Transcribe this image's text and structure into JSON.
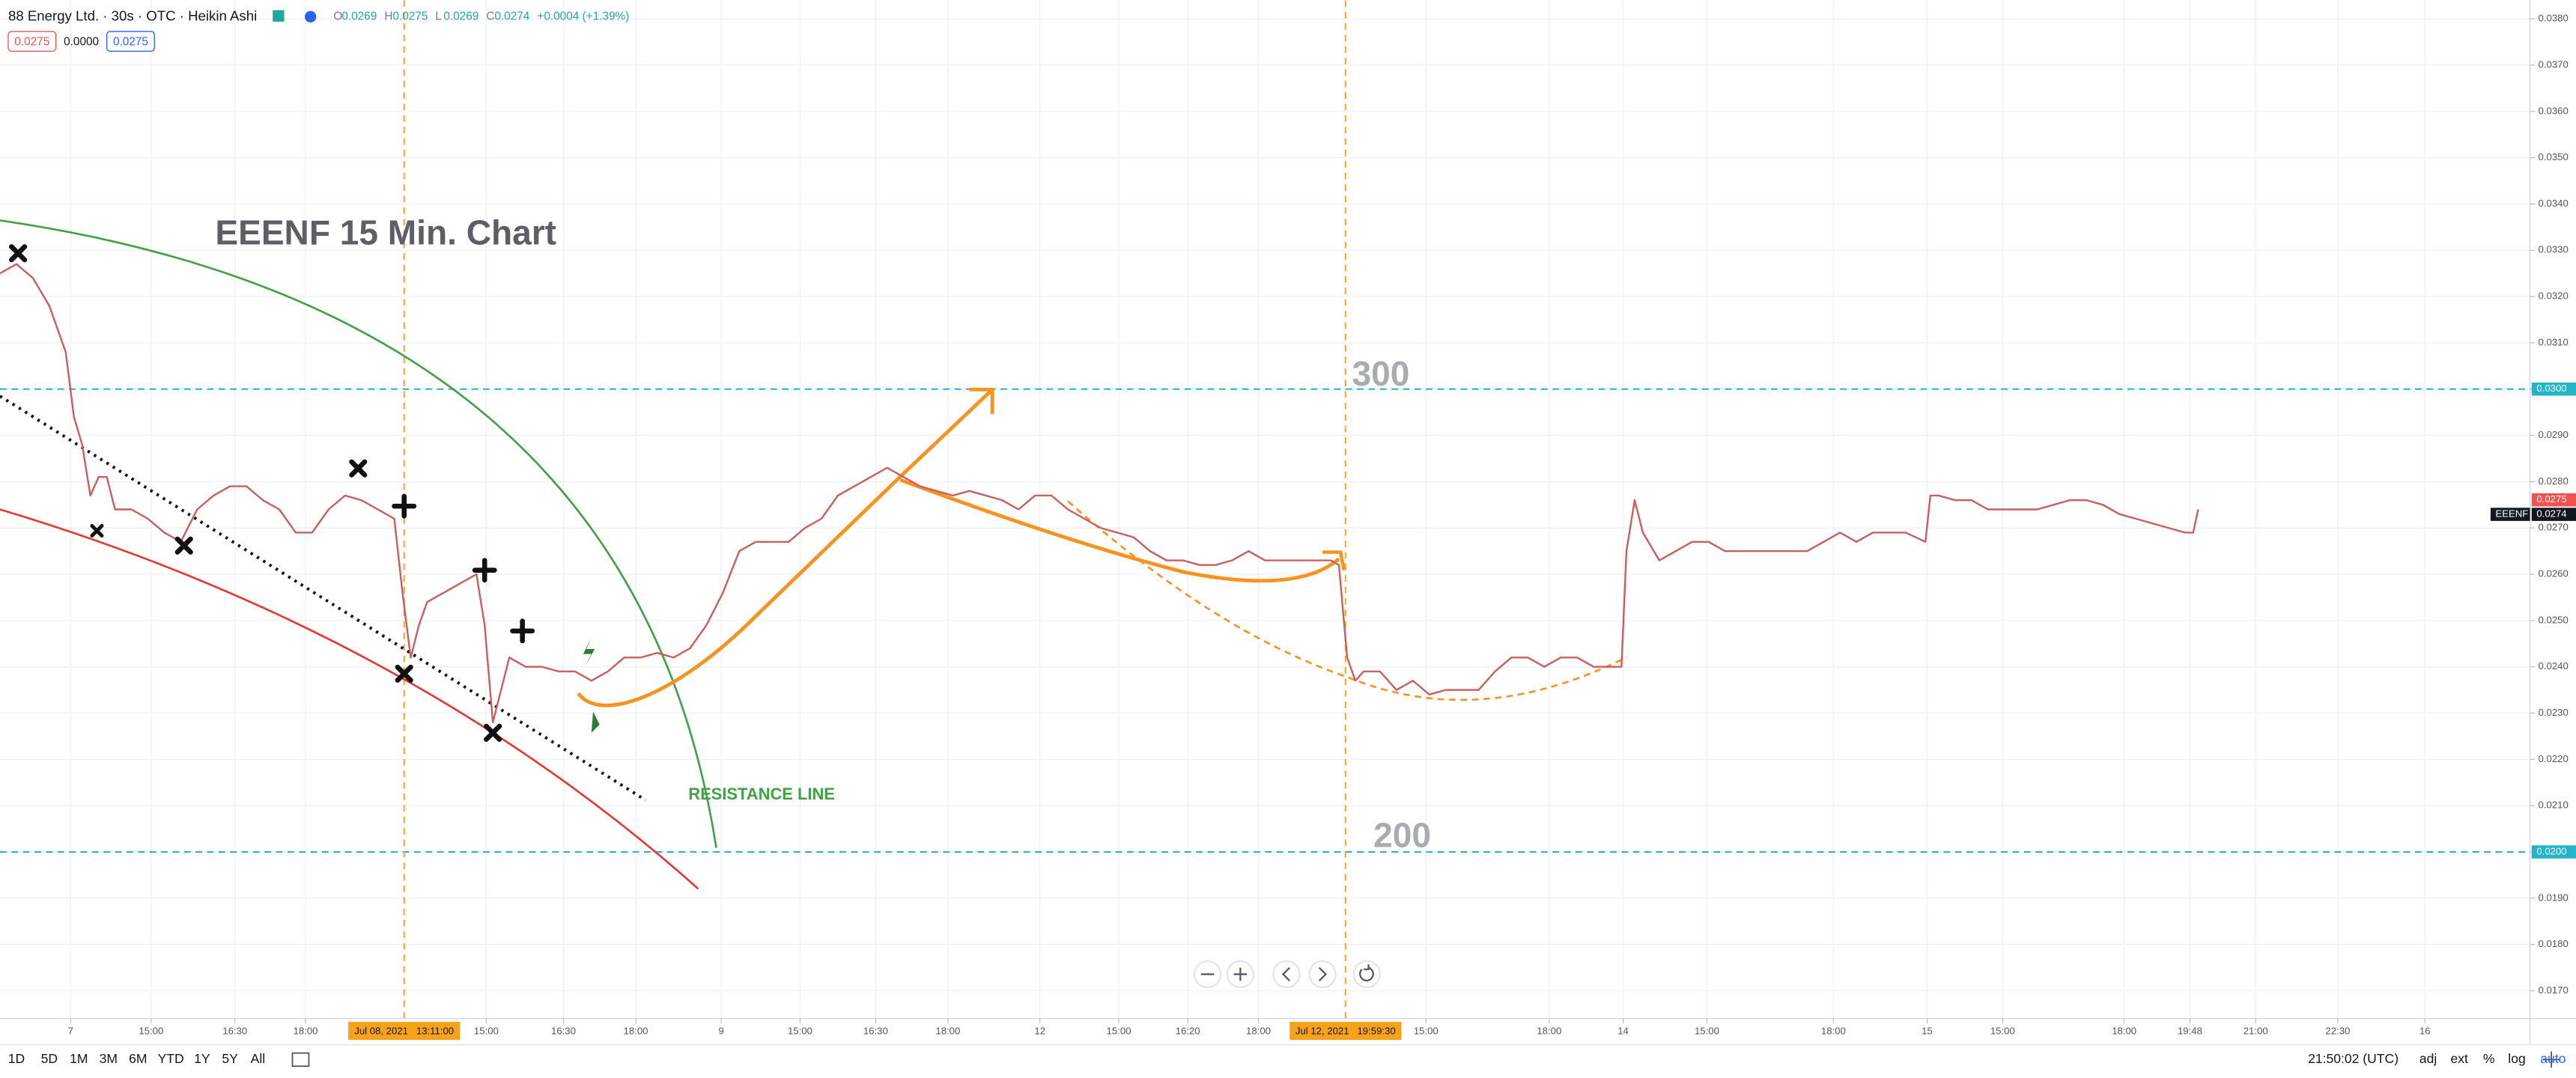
{
  "header": {
    "symbol": "88 Energy Ltd. · 30s · OTC · Heikin Ashi",
    "ohlc": [
      {
        "key": "O",
        "value": "0.0269"
      },
      {
        "key": "H",
        "value": "0.0275"
      },
      {
        "key": "L",
        "value": "0.0269"
      },
      {
        "key": "C",
        "value": "0.0274"
      }
    ],
    "change": "+0.0004 (+1.39%)",
    "boxes": [
      "0.0275",
      "0.0000",
      "0.0275"
    ]
  },
  "toolbar": {
    "ranges": [
      "1D",
      "5D",
      "1M",
      "3M",
      "6M",
      "YTD",
      "1Y",
      "5Y",
      "All"
    ],
    "clock": "21:50:02 (UTC)",
    "options": [
      "adj",
      "ext",
      "%",
      "log",
      "auto"
    ]
  },
  "chart_data": {
    "type": "line",
    "color": "#c9605f",
    "x": [
      0,
      1,
      2,
      3,
      4,
      4.5,
      5,
      5.5,
      6,
      6.5,
      7,
      8,
      9,
      10,
      11,
      12,
      13,
      14,
      15,
      16,
      17,
      18,
      19,
      20,
      21,
      22,
      23,
      24,
      24.5,
      25,
      25.5,
      26,
      27,
      28,
      29,
      29.5,
      30,
      30.5,
      31,
      32,
      33,
      34,
      35,
      36,
      37,
      38,
      39,
      40,
      41,
      42,
      43,
      44,
      45,
      46,
      47,
      48,
      49,
      50,
      51,
      52,
      53,
      54,
      55,
      56,
      57,
      58,
      59,
      60,
      61,
      62,
      63,
      64,
      65,
      66,
      67,
      68,
      69,
      70,
      71,
      72,
      73,
      74,
      75,
      76,
      77,
      78,
      79,
      80,
      81,
      81.5,
      82,
      82.5,
      83,
      84,
      85,
      86,
      87,
      88,
      89,
      90,
      91,
      92,
      93,
      94,
      95,
      96,
      97,
      98,
      98.7,
      99,
      99.5,
      100,
      101,
      102,
      103,
      104,
      105,
      106,
      107,
      108,
      109,
      110,
      111,
      112,
      113,
      114,
      115,
      116,
      117.2,
      117.5,
      118,
      119,
      120,
      121,
      122,
      123,
      124,
      125,
      126,
      127,
      128,
      129,
      130,
      131,
      132,
      133,
      133.5,
      133.8
    ],
    "values": [
      0.0325,
      0.0327,
      0.0324,
      0.0318,
      0.0308,
      0.0294,
      0.0288,
      0.0277,
      0.0281,
      0.0281,
      0.0274,
      0.0274,
      0.0272,
      0.0269,
      0.0267,
      0.0274,
      0.0277,
      0.0279,
      0.0279,
      0.0276,
      0.0274,
      0.0269,
      0.0269,
      0.0274,
      0.0277,
      0.0276,
      0.0274,
      0.0272,
      0.0256,
      0.0242,
      0.0249,
      0.0254,
      0.0256,
      0.0258,
      0.026,
      0.0249,
      0.0228,
      0.0235,
      0.0242,
      0.024,
      0.024,
      0.0239,
      0.0239,
      0.0237,
      0.0239,
      0.0242,
      0.0242,
      0.0243,
      0.0242,
      0.0244,
      0.0249,
      0.0256,
      0.0265,
      0.0267,
      0.0267,
      0.0267,
      0.027,
      0.0272,
      0.0277,
      0.0279,
      0.0281,
      0.0283,
      0.0281,
      0.0279,
      0.0278,
      0.0277,
      0.0278,
      0.0277,
      0.0276,
      0.0274,
      0.0277,
      0.0277,
      0.0274,
      0.0272,
      0.027,
      0.0269,
      0.0268,
      0.0265,
      0.0263,
      0.0263,
      0.0262,
      0.0262,
      0.0263,
      0.0265,
      0.0263,
      0.0263,
      0.0263,
      0.0263,
      0.0263,
      0.0262,
      0.0242,
      0.0237,
      0.0239,
      0.0239,
      0.0235,
      0.0237,
      0.0234,
      0.0235,
      0.0235,
      0.0235,
      0.0239,
      0.0242,
      0.0242,
      0.024,
      0.0242,
      0.0242,
      0.024,
      0.024,
      0.024,
      0.0265,
      0.0276,
      0.0269,
      0.0263,
      0.0265,
      0.0267,
      0.0267,
      0.0265,
      0.0265,
      0.0265,
      0.0265,
      0.0265,
      0.0265,
      0.0267,
      0.0269,
      0.0267,
      0.0269,
      0.0269,
      0.0269,
      0.0267,
      0.0277,
      0.0277,
      0.0276,
      0.0276,
      0.0274,
      0.0274,
      0.0274,
      0.0274,
      0.0275,
      0.0276,
      0.0276,
      0.0275,
      0.0273,
      0.0272,
      0.0271,
      0.027,
      0.0269,
      0.0269,
      0.0274
    ],
    "xlim": [
      0,
      154
    ],
    "ylim": [
      0.0164,
      0.0384
    ],
    "grid": true,
    "yticks": [
      {
        "value": 0.017,
        "label": "0.0170"
      },
      {
        "value": 0.018,
        "label": "0.0180"
      },
      {
        "value": 0.019,
        "label": "0.0190"
      },
      {
        "value": 0.02,
        "label": "0.0200"
      },
      {
        "value": 0.021,
        "label": "0.0210"
      },
      {
        "value": 0.022,
        "label": "0.0220"
      },
      {
        "value": 0.023,
        "label": "0.0230"
      },
      {
        "value": 0.024,
        "label": "0.0240"
      },
      {
        "value": 0.025,
        "label": "0.0250"
      },
      {
        "value": 0.026,
        "label": "0.0260"
      },
      {
        "value": 0.027,
        "label": "0.0270"
      },
      {
        "value": 0.028,
        "label": "0.0280"
      },
      {
        "value": 0.029,
        "label": "0.0290"
      },
      {
        "value": 0.03,
        "label": "0.0300"
      },
      {
        "value": 0.031,
        "label": "0.0310"
      },
      {
        "value": 0.032,
        "label": "0.0320"
      },
      {
        "value": 0.033,
        "label": "0.0330"
      },
      {
        "value": 0.034,
        "label": "0.0340"
      },
      {
        "value": 0.035,
        "label": "0.0350"
      },
      {
        "value": 0.036,
        "label": "0.0360"
      },
      {
        "value": 0.037,
        "label": "0.0370"
      },
      {
        "value": 0.038,
        "label": "0.0380"
      }
    ],
    "xticks": [
      {
        "value": 4.3,
        "label": "7"
      },
      {
        "value": 9.2,
        "label": "15:00"
      },
      {
        "value": 14.3,
        "label": "16:30"
      },
      {
        "value": 18.6,
        "label": "18:00"
      },
      {
        "value": 29.6,
        "label": "15:00"
      },
      {
        "value": 34.3,
        "label": "16:30"
      },
      {
        "value": 38.7,
        "label": "18:00"
      },
      {
        "value": 43.9,
        "label": "9"
      },
      {
        "value": 48.7,
        "label": "15:00"
      },
      {
        "value": 53.3,
        "label": "16:30"
      },
      {
        "value": 57.7,
        "label": "18:00"
      },
      {
        "value": 63.3,
        "label": "12"
      },
      {
        "value": 68.1,
        "label": "15:00"
      },
      {
        "value": 72.3,
        "label": "16:20"
      },
      {
        "value": 76.6,
        "label": "18:00"
      },
      {
        "value": 86.8,
        "label": "15:00"
      },
      {
        "value": 94.3,
        "label": "18:00"
      },
      {
        "value": 98.8,
        "label": "14"
      },
      {
        "value": 103.9,
        "label": "15:00"
      },
      {
        "value": 111.6,
        "label": "18:00"
      },
      {
        "value": 117.3,
        "label": "15"
      },
      {
        "value": 121.9,
        "label": "15:00"
      },
      {
        "value": 129.3,
        "label": "18:00"
      },
      {
        "value": 133.3,
        "label": "19:48"
      },
      {
        "value": 137.3,
        "label": "21:00"
      },
      {
        "value": 142.3,
        "label": "22:30"
      },
      {
        "value": 147.6,
        "label": "16"
      }
    ],
    "hlines": [
      {
        "value": 0.03,
        "label": "0.0300",
        "color": "#22b5c9"
      },
      {
        "value": 0.02,
        "label": "0.0200",
        "color": "#22b5c9"
      }
    ],
    "vlines": [
      {
        "value": 24.6,
        "label": "Jul 08, 2021   13:11:00",
        "color": "#f7a21b"
      },
      {
        "value": 81.9,
        "label": "Jul 12, 2021   19:59:30",
        "color": "#f7a21b"
      }
    ],
    "price_labels": [
      {
        "value": 0.0275,
        "label": "0.0275",
        "color": "#ef5350"
      },
      {
        "value": 0.0274,
        "label": "0.0274",
        "name": "EEENF",
        "color": "#131722"
      }
    ],
    "annotations": [
      "EEENF 15 Min. Chart",
      "300",
      "200",
      "RESISTANCE LINE"
    ]
  }
}
